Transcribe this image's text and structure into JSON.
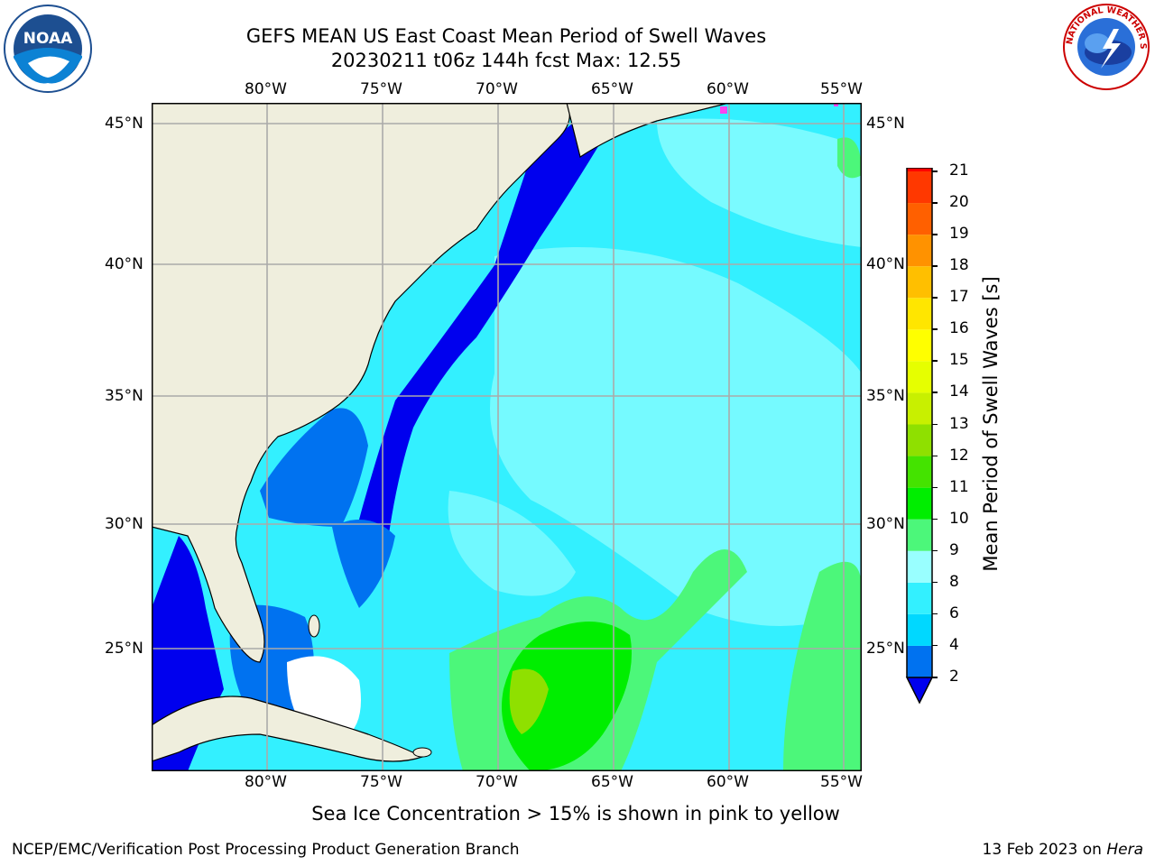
{
  "header": {
    "title_line1": "GEFS MEAN US East Coast Mean Period of Swell Waves",
    "title_line2": "20230211 t06z 144h fcst   Max: 12.55"
  },
  "logos": {
    "left": {
      "name": "noaa-logo",
      "text": "NOAA"
    },
    "right": {
      "name": "nws-logo",
      "text": "NATIONAL WEATHER SERVICE"
    }
  },
  "map": {
    "lon_labels": [
      "80°W",
      "75°W",
      "70°W",
      "65°W",
      "60°W",
      "55°W"
    ],
    "lat_labels": [
      "45°N",
      "40°N",
      "35°N",
      "30°N",
      "25°N"
    ],
    "land_color": "#efeedd",
    "ocean_shallow_color": "#0000ff",
    "grid_color": "#aaaaaa"
  },
  "colorbar": {
    "label": "Mean Period of Swell Waves [s]",
    "ticks": [
      "2",
      "4",
      "6",
      "8",
      "9",
      "10",
      "11",
      "12",
      "13",
      "14",
      "15",
      "16",
      "17",
      "18",
      "19",
      "20",
      "21"
    ],
    "colors": [
      "#0072f0",
      "#00d8ff",
      "#33f0ff",
      "#99ffff",
      "#4cf77a",
      "#00ee00",
      "#44e300",
      "#8fe000",
      "#c8f000",
      "#e6ff00",
      "#ffff00",
      "#ffe600",
      "#ffbf00",
      "#ff9200",
      "#ff6000",
      "#ff3800"
    ],
    "under_color": "#0000ee",
    "over_color": "#ff0000"
  },
  "notes": {
    "sea_ice": "Sea Ice Concentration > 15% is shown in pink to yellow"
  },
  "footer": {
    "left": "NCEP/EMC/Verification Post Processing Product Generation Branch",
    "right_date": "13 Feb 2023 on ",
    "right_host": "Hera"
  }
}
